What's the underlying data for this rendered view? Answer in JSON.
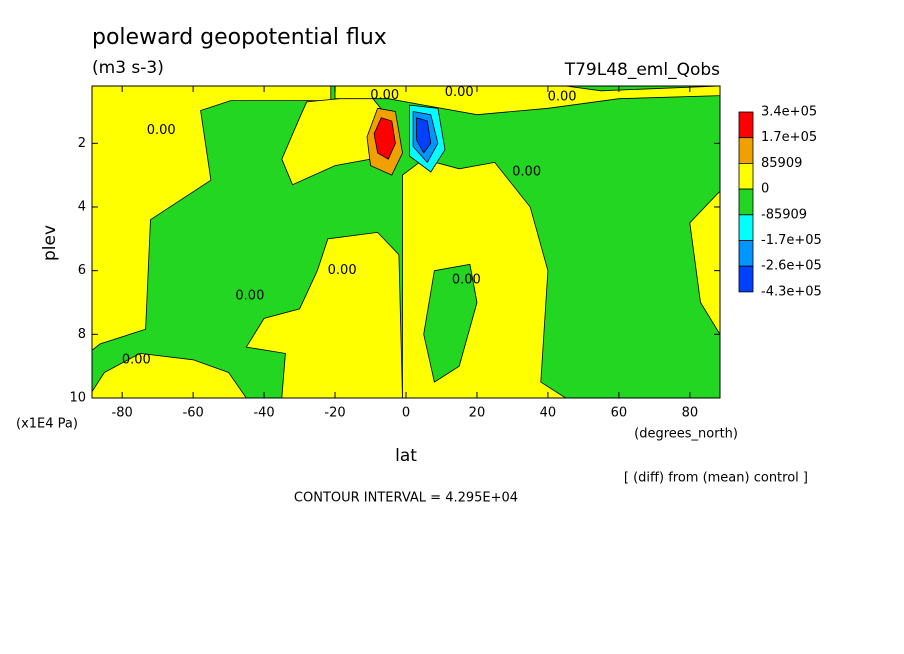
{
  "chart_data": {
    "type": "contour",
    "title": "poleward geopotential flux",
    "subtitle": "(m3 s-3)",
    "run_label": "T79L48_eml_Qobs",
    "x_label": "lat",
    "x_unit": "(degrees_north)",
    "y_label": "plev",
    "y_unit": "(x1E4 Pa)",
    "note": "[ (diff) from (mean) control ]",
    "contour_interval": "CONTOUR INTERVAL = 4.295E+04",
    "xlim": [
      -88.5,
      88.5
    ],
    "xticks": [
      -80,
      -60,
      -40,
      -20,
      0,
      20,
      40,
      60,
      80
    ],
    "ylim": [
      10,
      0.2
    ],
    "yticks": [
      2,
      4,
      6,
      8,
      10
    ],
    "levels": [
      {
        "value": 340000,
        "label": "3.4e+05"
      },
      {
        "value": 170000,
        "label": "1.7e+05"
      },
      85909,
      0,
      -85909,
      {
        "value": -170000,
        "label": "-1.7e+05"
      },
      {
        "value": -260000,
        "label": "-2.6e+05"
      },
      {
        "value": -430000,
        "label": "-4.3e+05"
      }
    ],
    "colors": [
      "#ff0000",
      "#f0a000",
      "#ffff00",
      "#22d622",
      "#00ffff",
      "#0096ff",
      "#0040ff"
    ],
    "background_level": -85909,
    "regions": [
      {
        "level": 0,
        "points": [
          [
            -88.5,
            0.2
          ],
          [
            -21.2,
            0.2
          ],
          [
            -21.2,
            0.66
          ],
          [
            -49.4,
            0.66
          ],
          [
            -57.9,
            0.97
          ],
          [
            -55,
            3.16
          ],
          [
            -72,
            4.4
          ],
          [
            -73.4,
            7.84
          ],
          [
            -86.2,
            8.3
          ],
          [
            -88.5,
            8.5
          ]
        ]
      },
      {
        "level": 0,
        "points": [
          [
            -28,
            0.7
          ],
          [
            -10,
            0.5
          ],
          [
            -5,
            1.2
          ],
          [
            -10,
            2.5
          ],
          [
            -20,
            2.7
          ],
          [
            -32,
            3.3
          ],
          [
            -35,
            2.5
          ],
          [
            -30,
            1.2
          ]
        ]
      },
      {
        "level": 0,
        "points": [
          [
            -22,
            5.0
          ],
          [
            -8,
            4.8
          ],
          [
            -2,
            5.5
          ],
          [
            -1,
            10
          ],
          [
            -35,
            10
          ],
          [
            -34,
            8.6
          ],
          [
            -45,
            8.4
          ],
          [
            -40,
            7.5
          ],
          [
            -30,
            7.2
          ],
          [
            -25,
            6.0
          ]
        ]
      },
      {
        "level": 0,
        "points": [
          [
            -85,
            9.2
          ],
          [
            -75,
            8.6
          ],
          [
            -60,
            8.8
          ],
          [
            -50,
            9.2
          ],
          [
            -45,
            10
          ],
          [
            -88.5,
            10
          ],
          [
            -88.5,
            9.8
          ]
        ]
      },
      {
        "level": 0,
        "points": [
          [
            -1,
            3.0
          ],
          [
            5,
            2.5
          ],
          [
            15,
            2.8
          ],
          [
            25,
            2.6
          ],
          [
            35,
            4.0
          ],
          [
            40,
            6
          ],
          [
            38,
            9.5
          ],
          [
            45,
            10
          ],
          [
            -1,
            10
          ]
        ]
      },
      {
        "level": 0,
        "points": [
          [
            -20,
            0.2
          ],
          [
            45,
            0.2
          ],
          [
            55,
            0.35
          ],
          [
            88.5,
            0.2
          ],
          [
            88.5,
            0.5
          ],
          [
            60,
            0.6
          ],
          [
            40,
            0.9
          ],
          [
            20,
            1.1
          ],
          [
            5,
            0.8
          ],
          [
            -5,
            0.6
          ],
          [
            -20,
            0.6
          ]
        ]
      },
      {
        "level": 0,
        "points": [
          [
            80,
            4.5
          ],
          [
            88.5,
            3.5
          ],
          [
            88.5,
            8
          ],
          [
            83,
            7
          ]
        ]
      },
      {
        "level": -85909,
        "points": [
          [
            8,
            6.0
          ],
          [
            18,
            5.8
          ],
          [
            20,
            7
          ],
          [
            15,
            9
          ],
          [
            8,
            9.5
          ],
          [
            5,
            8
          ]
        ]
      },
      {
        "level": 85909,
        "points": [
          [
            -8,
            0.9
          ],
          [
            -3,
            1.0
          ],
          [
            -1,
            2.3
          ],
          [
            -4,
            3.0
          ],
          [
            -10,
            2.7
          ],
          [
            -11,
            1.8
          ]
        ]
      },
      {
        "level": 170000,
        "points": [
          [
            -7,
            1.2
          ],
          [
            -4,
            1.3
          ],
          [
            -3,
            2.0
          ],
          [
            -5,
            2.5
          ],
          [
            -8,
            2.3
          ],
          [
            -9,
            1.7
          ]
        ]
      },
      {
        "level": -170000,
        "points": [
          [
            1,
            0.8
          ],
          [
            9,
            0.9
          ],
          [
            11,
            2.2
          ],
          [
            7,
            2.9
          ],
          [
            1,
            2.4
          ]
        ]
      },
      {
        "level": -260000,
        "points": [
          [
            2,
            1.0
          ],
          [
            7,
            1.1
          ],
          [
            9,
            2.0
          ],
          [
            6,
            2.6
          ],
          [
            2,
            2.1
          ]
        ]
      },
      {
        "level": -430000,
        "points": [
          [
            3,
            1.2
          ],
          [
            6,
            1.3
          ],
          [
            7,
            2.0
          ],
          [
            5,
            2.3
          ],
          [
            3,
            1.9
          ]
        ]
      }
    ],
    "contour_labels": [
      {
        "text": "0.00",
        "lat": -69,
        "plev": 1.6
      },
      {
        "text": "0.00",
        "lat": -6,
        "plev": 0.5
      },
      {
        "text": "0.00",
        "lat": 15,
        "plev": 0.4
      },
      {
        "text": "0.00",
        "lat": 44,
        "plev": 0.55
      },
      {
        "text": "0.00",
        "lat": 34,
        "plev": 2.9
      },
      {
        "text": "0.00",
        "lat": -18,
        "plev": 6.0
      },
      {
        "text": "0.00",
        "lat": 17,
        "plev": 6.3
      },
      {
        "text": "0.00",
        "lat": -44,
        "plev": 6.8
      },
      {
        "text": "0.00",
        "lat": -76,
        "plev": 8.8
      }
    ]
  }
}
